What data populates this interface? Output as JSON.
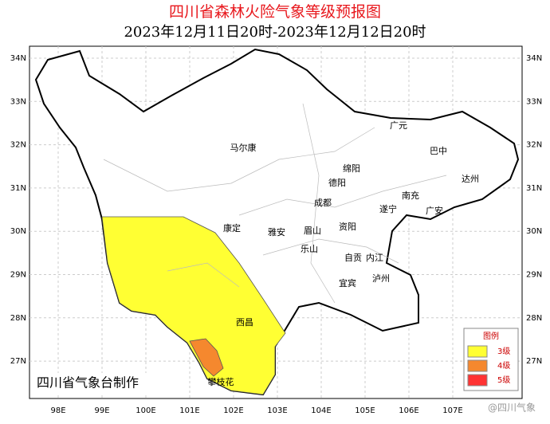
{
  "header": {
    "title": "四川省森林火险气象等级预报图",
    "subtitle": "2023年12月11日20时-2023年12月12日20时"
  },
  "map": {
    "lat_labels": [
      "34N",
      "33N",
      "32N",
      "31N",
      "30N",
      "29N",
      "28N",
      "27N"
    ],
    "lon_labels": [
      "98E",
      "99E",
      "100E",
      "101E",
      "102E",
      "103E",
      "104E",
      "105E",
      "106E",
      "107E"
    ],
    "cities": [
      "广元",
      "巴中",
      "马尔康",
      "绵阳",
      "德阳",
      "达州",
      "南充",
      "成都",
      "遂宁",
      "广安",
      "康定",
      "雅安",
      "眉山",
      "资阳",
      "乐山",
      "自贡",
      "内江",
      "宜宾",
      "泸州",
      "西昌",
      "攀枝花"
    ]
  },
  "legend": {
    "title": "图例",
    "items": [
      {
        "label": "3级",
        "color": "#ffff33"
      },
      {
        "label": "4级",
        "color": "#f5882e"
      },
      {
        "label": "5级",
        "color": "#ff3333"
      }
    ]
  },
  "credit": "四川省气象台制作",
  "watermark": "@四川气象"
}
